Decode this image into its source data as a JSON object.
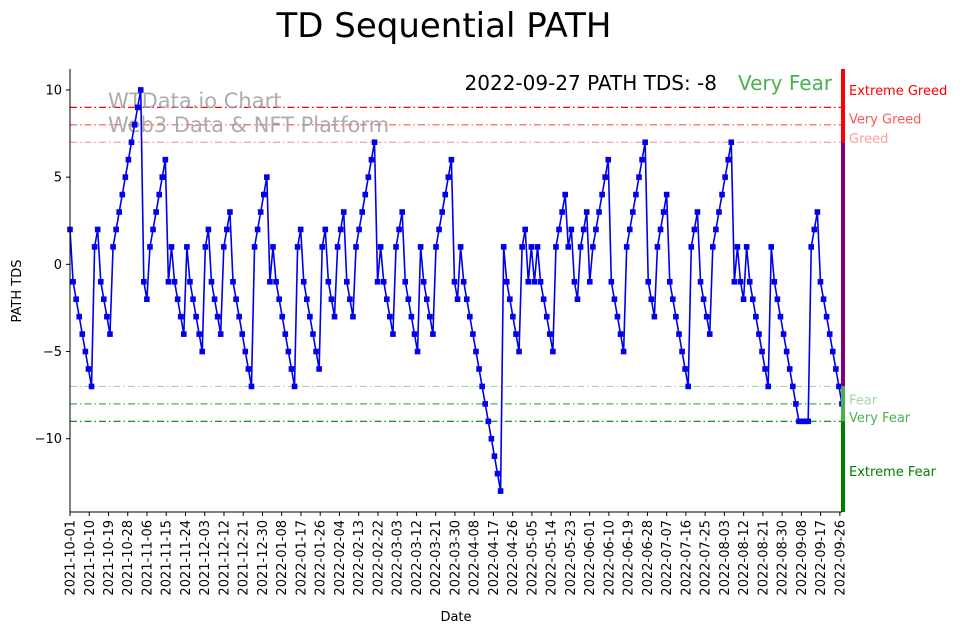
{
  "chart_data": {
    "type": "line",
    "title": "TD Sequential PATH",
    "xlabel": "Date",
    "ylabel": "PATH TDS",
    "ylim": [
      -14.2,
      11.2
    ],
    "yticks": [
      10,
      5,
      0,
      -5,
      -10
    ],
    "ytick_labels": [
      "10",
      "5",
      "0",
      "−5",
      "−10"
    ],
    "x_start": "2021-10-01",
    "x_end": "2022-09-27",
    "xtick_labels": [
      "2021-10-01",
      "2021-10-10",
      "2021-10-19",
      "2021-10-28",
      "2021-11-06",
      "2021-11-15",
      "2021-11-24",
      "2021-12-03",
      "2021-12-12",
      "2021-12-21",
      "2021-12-30",
      "2022-01-08",
      "2022-01-17",
      "2022-01-26",
      "2022-02-04",
      "2022-02-13",
      "2022-02-22",
      "2022-03-03",
      "2022-03-12",
      "2022-03-21",
      "2022-03-30",
      "2022-04-08",
      "2022-04-17",
      "2022-04-26",
      "2022-05-05",
      "2022-05-14",
      "2022-05-23",
      "2022-06-01",
      "2022-06-10",
      "2022-06-19",
      "2022-06-28",
      "2022-07-07",
      "2022-07-16",
      "2022-07-25",
      "2022-08-03",
      "2022-08-12",
      "2022-08-21",
      "2022-08-30",
      "2022-09-08",
      "2022-09-17",
      "2022-09-26"
    ],
    "annotation": "2022-09-27 PATH TDS: -8",
    "status": "Very Fear",
    "status_color": "#4caf50",
    "watermark_lines": [
      "WTData.io Chart",
      "Web3 Data & NFT Platform"
    ],
    "series": [
      {
        "name": "PATH TDS",
        "color": "#0000ee",
        "values": [
          2,
          -1,
          -2,
          -3,
          -4,
          -5,
          -6,
          -7,
          1,
          2,
          -1,
          -2,
          -3,
          -4,
          1,
          2,
          3,
          4,
          5,
          6,
          7,
          8,
          9,
          10,
          -1,
          -2,
          1,
          2,
          3,
          4,
          5,
          6,
          -1,
          1,
          -1,
          -2,
          -3,
          -4,
          1,
          -1,
          -2,
          -3,
          -4,
          -5,
          1,
          2,
          -1,
          -2,
          -3,
          -4,
          1,
          2,
          3,
          -1,
          -2,
          -3,
          -4,
          -5,
          -6,
          -7,
          1,
          2,
          3,
          4,
          5,
          -1,
          1,
          -1,
          -2,
          -3,
          -4,
          -5,
          -6,
          -7,
          1,
          2,
          -1,
          -2,
          -3,
          -4,
          -5,
          -6,
          1,
          2,
          -1,
          -2,
          -3,
          1,
          2,
          3,
          -1,
          -2,
          -3,
          1,
          2,
          3,
          4,
          5,
          6,
          7,
          -1,
          1,
          -1,
          -2,
          -3,
          -4,
          1,
          2,
          3,
          -1,
          -2,
          -3,
          -4,
          -5,
          1,
          -1,
          -2,
          -3,
          -4,
          1,
          2,
          3,
          4,
          5,
          6,
          -1,
          -2,
          1,
          -1,
          -2,
          -3,
          -4,
          -5,
          -6,
          -7,
          -8,
          -9,
          -10,
          -11,
          -12,
          -13,
          1,
          -1,
          -2,
          -3,
          -4,
          -5,
          1,
          2,
          -1,
          1,
          -1,
          1,
          -1,
          -2,
          -3,
          -4,
          -5,
          1,
          2,
          3,
          4,
          1,
          2,
          -1,
          -2,
          1,
          2,
          3,
          -1,
          1,
          2,
          3,
          4,
          5,
          6,
          -1,
          -2,
          -3,
          -4,
          -5,
          1,
          2,
          3,
          4,
          5,
          6,
          7,
          -1,
          -2,
          -3,
          1,
          2,
          3,
          4,
          -1,
          -2,
          -3,
          -4,
          -5,
          -6,
          -7,
          1,
          2,
          3,
          -1,
          -2,
          -3,
          -4,
          1,
          2,
          3,
          4,
          5,
          6,
          7,
          -1,
          1,
          -1,
          -2,
          1,
          -1,
          -2,
          -3,
          -4,
          -5,
          -6,
          -7,
          1,
          -1,
          -2,
          -3,
          -4,
          -5,
          -6,
          -7,
          -8,
          -9,
          -9,
          -9,
          -9,
          1,
          2,
          3,
          -1,
          -2,
          -3,
          -4,
          -5,
          -6,
          -7,
          -8
        ]
      }
    ],
    "thresholds": [
      {
        "value": 9,
        "label": "Extreme Greed",
        "color": "#ff0000"
      },
      {
        "value": 8,
        "label": "Very Greed",
        "color": "#ff5555"
      },
      {
        "value": 7,
        "label": "Greed",
        "color": "#ff9d9d"
      },
      {
        "value": -7,
        "label": "Fear",
        "color": "#a5d6a7"
      },
      {
        "value": -8,
        "label": "Very Fear",
        "color": "#4caf50"
      },
      {
        "value": -9,
        "label": "Extreme Fear",
        "color": "#008000"
      }
    ],
    "side_bar": [
      {
        "from": 7,
        "to": 11.2,
        "color": "#ff0000"
      },
      {
        "from": -7,
        "to": 7,
        "color": "#800080"
      },
      {
        "from": -9,
        "to": -7,
        "color": "#4caf50"
      },
      {
        "from": -14.2,
        "to": -9,
        "color": "#008000"
      }
    ]
  }
}
